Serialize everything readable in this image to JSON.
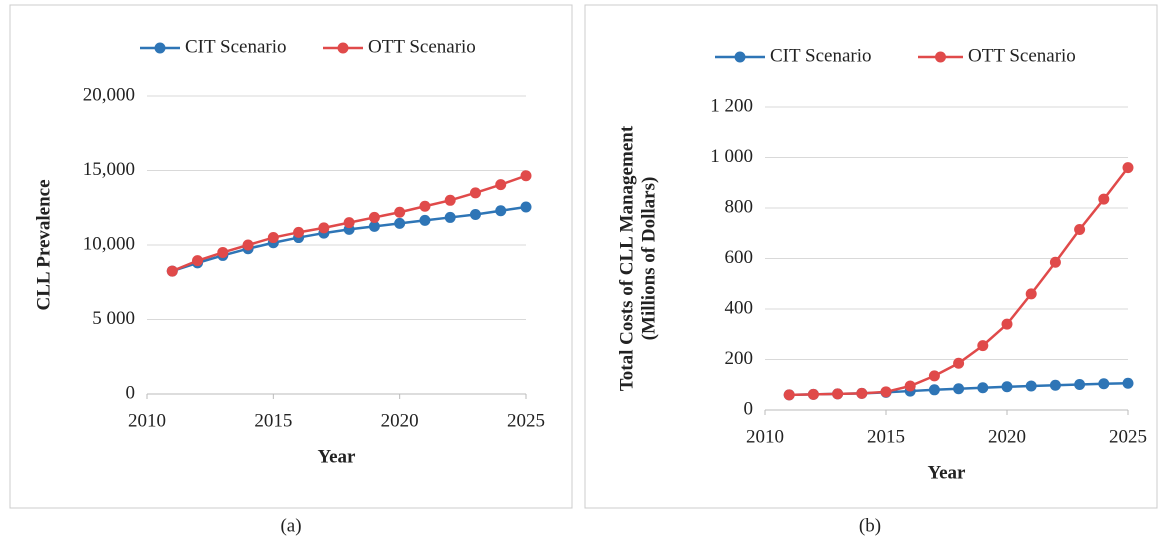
{
  "chart_data": [
    {
      "type": "line",
      "caption": "(a)",
      "xlabel": "Year",
      "ylabel": [
        "CLL Prevalence"
      ],
      "x": [
        2011,
        2012,
        2013,
        2014,
        2015,
        2016,
        2017,
        2018,
        2019,
        2020,
        2021,
        2022,
        2023,
        2024,
        2025
      ],
      "xlim": [
        2010,
        2025
      ],
      "xticks": [
        2010,
        2015,
        2020,
        2025
      ],
      "ylim": [
        0,
        20000
      ],
      "yticks": [
        0,
        {
          "value": 5000,
          "label": "5 000"
        },
        {
          "value": 10000,
          "label": "10,000"
        },
        {
          "value": 15000,
          "label": "15,000"
        },
        {
          "value": 20000,
          "label": "20,000"
        }
      ],
      "grid": true,
      "legend": "top",
      "series": [
        {
          "name": "CIT Scenario",
          "color": "#2e75b6",
          "values": [
            8250,
            8800,
            9300,
            9750,
            10150,
            10500,
            10800,
            11050,
            11250,
            11450,
            11650,
            11850,
            12050,
            12300,
            12550
          ]
        },
        {
          "name": "OTT Scenario",
          "color": "#e04a4a",
          "values": [
            8250,
            8950,
            9500,
            10000,
            10500,
            10850,
            11150,
            11500,
            11850,
            12200,
            12600,
            13000,
            13500,
            14050,
            14650
          ]
        }
      ]
    },
    {
      "type": "line",
      "caption": "(b)",
      "xlabel": "Year",
      "ylabel": [
        "Total Costs of CLL Management",
        "(Millions of Dollars)"
      ],
      "x": [
        2011,
        2012,
        2013,
        2014,
        2015,
        2016,
        2017,
        2018,
        2019,
        2020,
        2021,
        2022,
        2023,
        2024,
        2025
      ],
      "xlim": [
        2010,
        2025
      ],
      "xticks": [
        2010,
        2015,
        2020,
        2025
      ],
      "ylim": [
        0,
        1200
      ],
      "yticks": [
        0,
        200,
        400,
        600,
        800,
        {
          "value": 1000,
          "label": "1 000"
        },
        {
          "value": 1200,
          "label": "1 200"
        }
      ],
      "grid": true,
      "legend": "top",
      "series": [
        {
          "name": "CIT Scenario",
          "color": "#2e75b6",
          "values": [
            60,
            62,
            64,
            66,
            70,
            75,
            80,
            84,
            88,
            92,
            95,
            98,
            101,
            104,
            106
          ]
        },
        {
          "name": "OTT Scenario",
          "color": "#e04a4a",
          "values": [
            60,
            62,
            64,
            66,
            72,
            95,
            135,
            185,
            255,
            340,
            460,
            585,
            715,
            835,
            960
          ]
        }
      ]
    }
  ]
}
